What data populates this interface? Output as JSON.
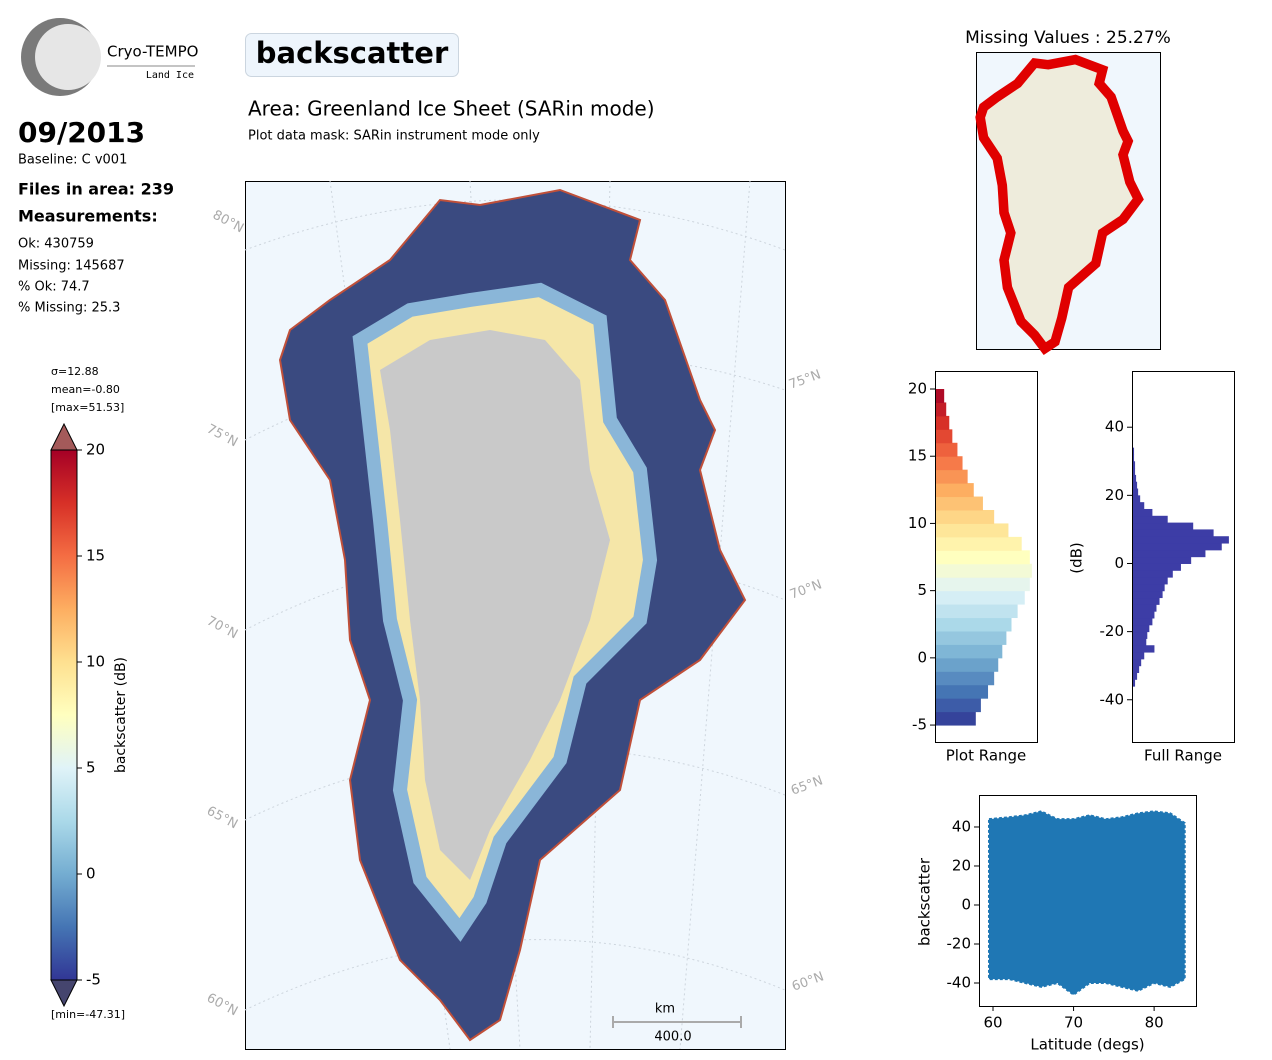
{
  "logo": {
    "name": "Cryo-TEMPO",
    "product": "Land Ice"
  },
  "header": {
    "date": "09/2013",
    "baseline": "Baseline: C v001",
    "files": "Files in area: 239",
    "measurements": "Measurements:",
    "ok": "Ok: 430759",
    "missing": "Missing: 145687",
    "pct_ok": "% Ok: 74.7",
    "pct_missing": "% Missing: 25.3",
    "parameter": "backscatter",
    "area": "Area: Greenland Ice Sheet (SARin mode)",
    "mask": "Plot data mask: SARin instrument mode only"
  },
  "map": {
    "lat_left": [
      "80°N",
      "75°N",
      "70°N",
      "65°N",
      "60°N"
    ],
    "lat_right": [
      "75°N",
      "70°N",
      "65°N",
      "60°N"
    ],
    "scale_unit": "km",
    "scale_length": "400.0",
    "missing_title": "Missing Values : 25.27%"
  },
  "chart_data": [
    {
      "type": "colorbar",
      "label": "backscatter (dB)",
      "ylim": [
        -5,
        20
      ],
      "yticks": [
        20,
        15,
        10,
        5,
        0,
        -5
      ],
      "stats": [
        "σ=12.88",
        "mean=-0.80",
        "[max=51.53]"
      ],
      "min_label": "[min=-47.31]",
      "colormap": [
        "#313695",
        "#4575b4",
        "#74add1",
        "#abd9e9",
        "#e0f3f8",
        "#ffffbf",
        "#fee090",
        "#fdae61",
        "#f46d43",
        "#d73027",
        "#a50026"
      ]
    },
    {
      "type": "hbar-histogram",
      "xlabel": "Plot Range",
      "ylim": [
        -6.26,
        21.34
      ],
      "yticks": [
        20,
        15,
        10,
        5,
        0,
        -5
      ],
      "xlim": [
        0,
        100
      ],
      "colored": true,
      "bins": [
        -5,
        -4,
        -3,
        -2,
        -1,
        0,
        1,
        2,
        3,
        4,
        5,
        6,
        7,
        8,
        9,
        10,
        11,
        12,
        13,
        14,
        15,
        16,
        17,
        18,
        19,
        20
      ],
      "values": [
        40,
        45,
        52,
        58,
        62,
        66,
        70,
        75,
        81,
        88,
        93,
        95,
        93,
        85,
        72,
        58,
        47,
        38,
        32,
        27,
        22,
        17,
        14,
        11,
        9
      ]
    },
    {
      "type": "hbar-histogram",
      "xlabel": "Full Range",
      "ylabel": "(dB)",
      "ylim": [
        -52.4,
        56.5
      ],
      "yticks": [
        40,
        20,
        0,
        -20,
        -40
      ],
      "xlim": [
        0,
        100
      ],
      "color": "#3d3da6",
      "bins": [
        -36,
        -34,
        -32,
        -30,
        -28,
        -26,
        -24,
        -22,
        -20,
        -18,
        -16,
        -14,
        -12,
        -10,
        -8,
        -6,
        -4,
        -2,
        0,
        2,
        4,
        6,
        8,
        10,
        12,
        14,
        16,
        18,
        20,
        22,
        24,
        26,
        28,
        30,
        32,
        34,
        36,
        38
      ],
      "values": [
        3,
        5,
        7,
        9,
        12,
        22,
        14,
        15,
        17,
        20,
        22,
        24,
        27,
        30,
        32,
        35,
        40,
        48,
        58,
        72,
        88,
        95,
        80,
        60,
        35,
        20,
        12,
        8,
        6,
        5,
        4,
        3,
        3,
        2,
        2,
        1,
        1
      ]
    },
    {
      "type": "band",
      "xlabel": "Latitude (degs)",
      "ylabel": "backscatter",
      "color": "#1f77b4",
      "xlim": [
        58.26,
        85.2
      ],
      "ylim": [
        -51.8,
        56.4
      ],
      "xticks": [
        60,
        70,
        80
      ],
      "yticks": [
        40,
        20,
        0,
        -20,
        -40
      ],
      "x": [
        59.5,
        62,
        64,
        66,
        68,
        70,
        72,
        74,
        76,
        78,
        80,
        82,
        83.8
      ],
      "upper": [
        44,
        45,
        46,
        48,
        44,
        44,
        46,
        44,
        45,
        47,
        48,
        47,
        42
      ],
      "lower": [
        -38,
        -38,
        -40,
        -42,
        -40,
        -46,
        -40,
        -40,
        -42,
        -44,
        -40,
        -42,
        -38
      ]
    }
  ]
}
